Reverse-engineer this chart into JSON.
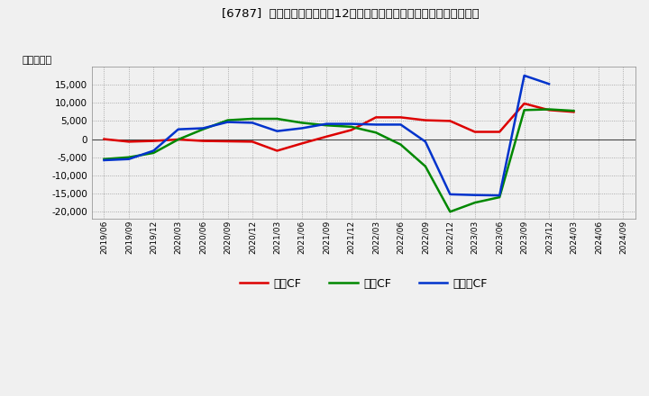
{
  "title": "[6787]  キャッシュフローの12か月移動合計の対前年同期増減額の推移",
  "ylabel": "（百万円）",
  "ylim": [
    -22000,
    20000
  ],
  "yticks": [
    -20000,
    -15000,
    -10000,
    -5000,
    0,
    5000,
    10000,
    15000
  ],
  "background_color": "#f0f0f0",
  "plot_bg_color": "#f0f0f0",
  "grid_color": "#999999",
  "x_labels": [
    "2019/06",
    "2019/09",
    "2019/12",
    "2020/03",
    "2020/06",
    "2020/09",
    "2020/12",
    "2021/03",
    "2021/06",
    "2021/09",
    "2021/12",
    "2022/03",
    "2022/06",
    "2022/09",
    "2022/12",
    "2023/03",
    "2023/06",
    "2023/09",
    "2023/12",
    "2024/03",
    "2024/06",
    "2024/09"
  ],
  "series": {
    "営業CF": {
      "color": "#dd0000",
      "values": [
        0,
        -700,
        -500,
        -100,
        -500,
        -600,
        -700,
        -3200,
        -1200,
        700,
        2500,
        6000,
        6000,
        5200,
        5000,
        2000,
        2000,
        9800,
        8000,
        7500,
        null,
        null
      ]
    },
    "投資CF": {
      "color": "#008800",
      "values": [
        -5500,
        -5000,
        -3800,
        -100,
        2700,
        5200,
        5600,
        5600,
        4500,
        3800,
        3400,
        1800,
        -1500,
        -7500,
        -20000,
        -17500,
        -16000,
        8000,
        8200,
        7800,
        null,
        null
      ]
    },
    "フリーCF": {
      "color": "#0033cc",
      "values": [
        -5800,
        -5500,
        -3200,
        2700,
        3000,
        4700,
        4500,
        2200,
        3000,
        4200,
        4200,
        4000,
        4000,
        -700,
        -15200,
        -15400,
        -15500,
        17500,
        15200,
        null,
        null,
        null
      ]
    }
  },
  "legend_entries": [
    "営業CF",
    "投資CF",
    "フリーCF"
  ],
  "legend_colors": [
    "#dd0000",
    "#008800",
    "#0033cc"
  ]
}
